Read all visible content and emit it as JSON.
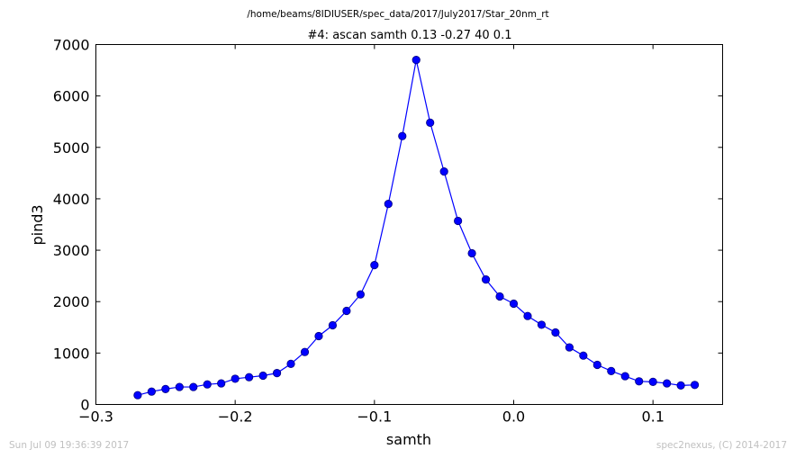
{
  "header": {
    "suptitle": "/home/beams/8IDIUSER/spec_data/2017/July2017/Star_20nm_rt"
  },
  "footer": {
    "timestamp": "Sun Jul 09 19:36:39 2017",
    "credit": "spec2nexus, (C) 2014-2017"
  },
  "chart_data": {
    "type": "line",
    "title": "#4: ascan  samth 0.13 -0.27  40 0.1",
    "xlabel": "samth",
    "ylabel": "pind3",
    "xlim": [
      -0.3,
      0.15
    ],
    "ylim": [
      0,
      7000
    ],
    "x_ticks": [
      -0.3,
      -0.2,
      -0.1,
      0.0,
      0.1
    ],
    "x_tick_labels": [
      "−0.3",
      "−0.2",
      "−0.1",
      "0.0",
      "0.1"
    ],
    "y_ticks": [
      0,
      1000,
      2000,
      3000,
      4000,
      5000,
      6000,
      7000
    ],
    "y_tick_labels": [
      "0",
      "1000",
      "2000",
      "3000",
      "4000",
      "5000",
      "6000",
      "7000"
    ],
    "grid": false,
    "line_color": "#0000ff",
    "marker": "circle",
    "x": [
      -0.27,
      -0.26,
      -0.25,
      -0.24,
      -0.23,
      -0.22,
      -0.21,
      -0.2,
      -0.19,
      -0.18,
      -0.17,
      -0.16,
      -0.15,
      -0.14,
      -0.13,
      -0.12,
      -0.11,
      -0.1,
      -0.09,
      -0.08,
      -0.07,
      -0.06,
      -0.05,
      -0.04,
      -0.03,
      -0.02,
      -0.01,
      0.0,
      0.01,
      0.02,
      0.03,
      0.04,
      0.05,
      0.06,
      0.07,
      0.08,
      0.09,
      0.1,
      0.11,
      0.12,
      0.13
    ],
    "y": [
      180,
      250,
      300,
      340,
      340,
      390,
      410,
      500,
      530,
      560,
      610,
      790,
      1020,
      1330,
      1540,
      1820,
      2140,
      2710,
      3900,
      5220,
      6700,
      5480,
      4530,
      3570,
      2940,
      2430,
      2100,
      1960,
      1720,
      1550,
      1400,
      1110,
      950,
      770,
      650,
      550,
      450,
      440,
      410,
      370,
      380
    ]
  }
}
